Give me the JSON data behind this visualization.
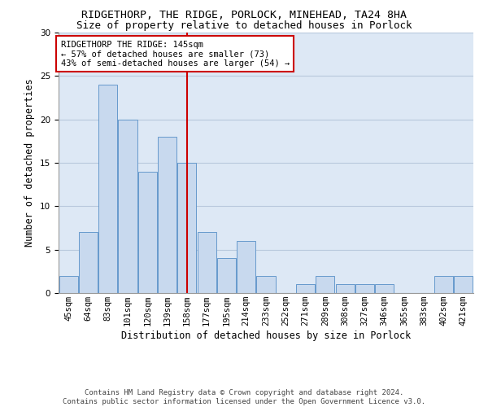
{
  "title1": "RIDGETHORP, THE RIDGE, PORLOCK, MINEHEAD, TA24 8HA",
  "title2": "Size of property relative to detached houses in Porlock",
  "xlabel": "Distribution of detached houses by size in Porlock",
  "ylabel": "Number of detached properties",
  "categories": [
    "45sqm",
    "64sqm",
    "83sqm",
    "101sqm",
    "120sqm",
    "139sqm",
    "158sqm",
    "177sqm",
    "195sqm",
    "214sqm",
    "233sqm",
    "252sqm",
    "271sqm",
    "289sqm",
    "308sqm",
    "327sqm",
    "346sqm",
    "365sqm",
    "383sqm",
    "402sqm",
    "421sqm"
  ],
  "values": [
    2,
    7,
    24,
    20,
    14,
    18,
    15,
    7,
    4,
    6,
    2,
    0,
    1,
    2,
    1,
    1,
    1,
    0,
    0,
    2,
    2
  ],
  "bar_color": "#c8d9ee",
  "bar_edge_color": "#6699cc",
  "vline_x": 6,
  "vline_color": "#cc0000",
  "annotation_text": "RIDGETHORP THE RIDGE: 145sqm\n← 57% of detached houses are smaller (73)\n43% of semi-detached houses are larger (54) →",
  "annotation_box_color": "#cc0000",
  "ylim": [
    0,
    30
  ],
  "yticks": [
    0,
    5,
    10,
    15,
    20,
    25,
    30
  ],
  "footnote": "Contains HM Land Registry data © Crown copyright and database right 2024.\nContains public sector information licensed under the Open Government Licence v3.0.",
  "bg_color": "#ffffff",
  "plot_bg_color": "#dde8f5",
  "grid_color": "#b8c8dc",
  "title_fontsize": 9.5,
  "subtitle_fontsize": 9,
  "label_fontsize": 8.5,
  "tick_fontsize": 7.5,
  "footnote_fontsize": 6.5
}
